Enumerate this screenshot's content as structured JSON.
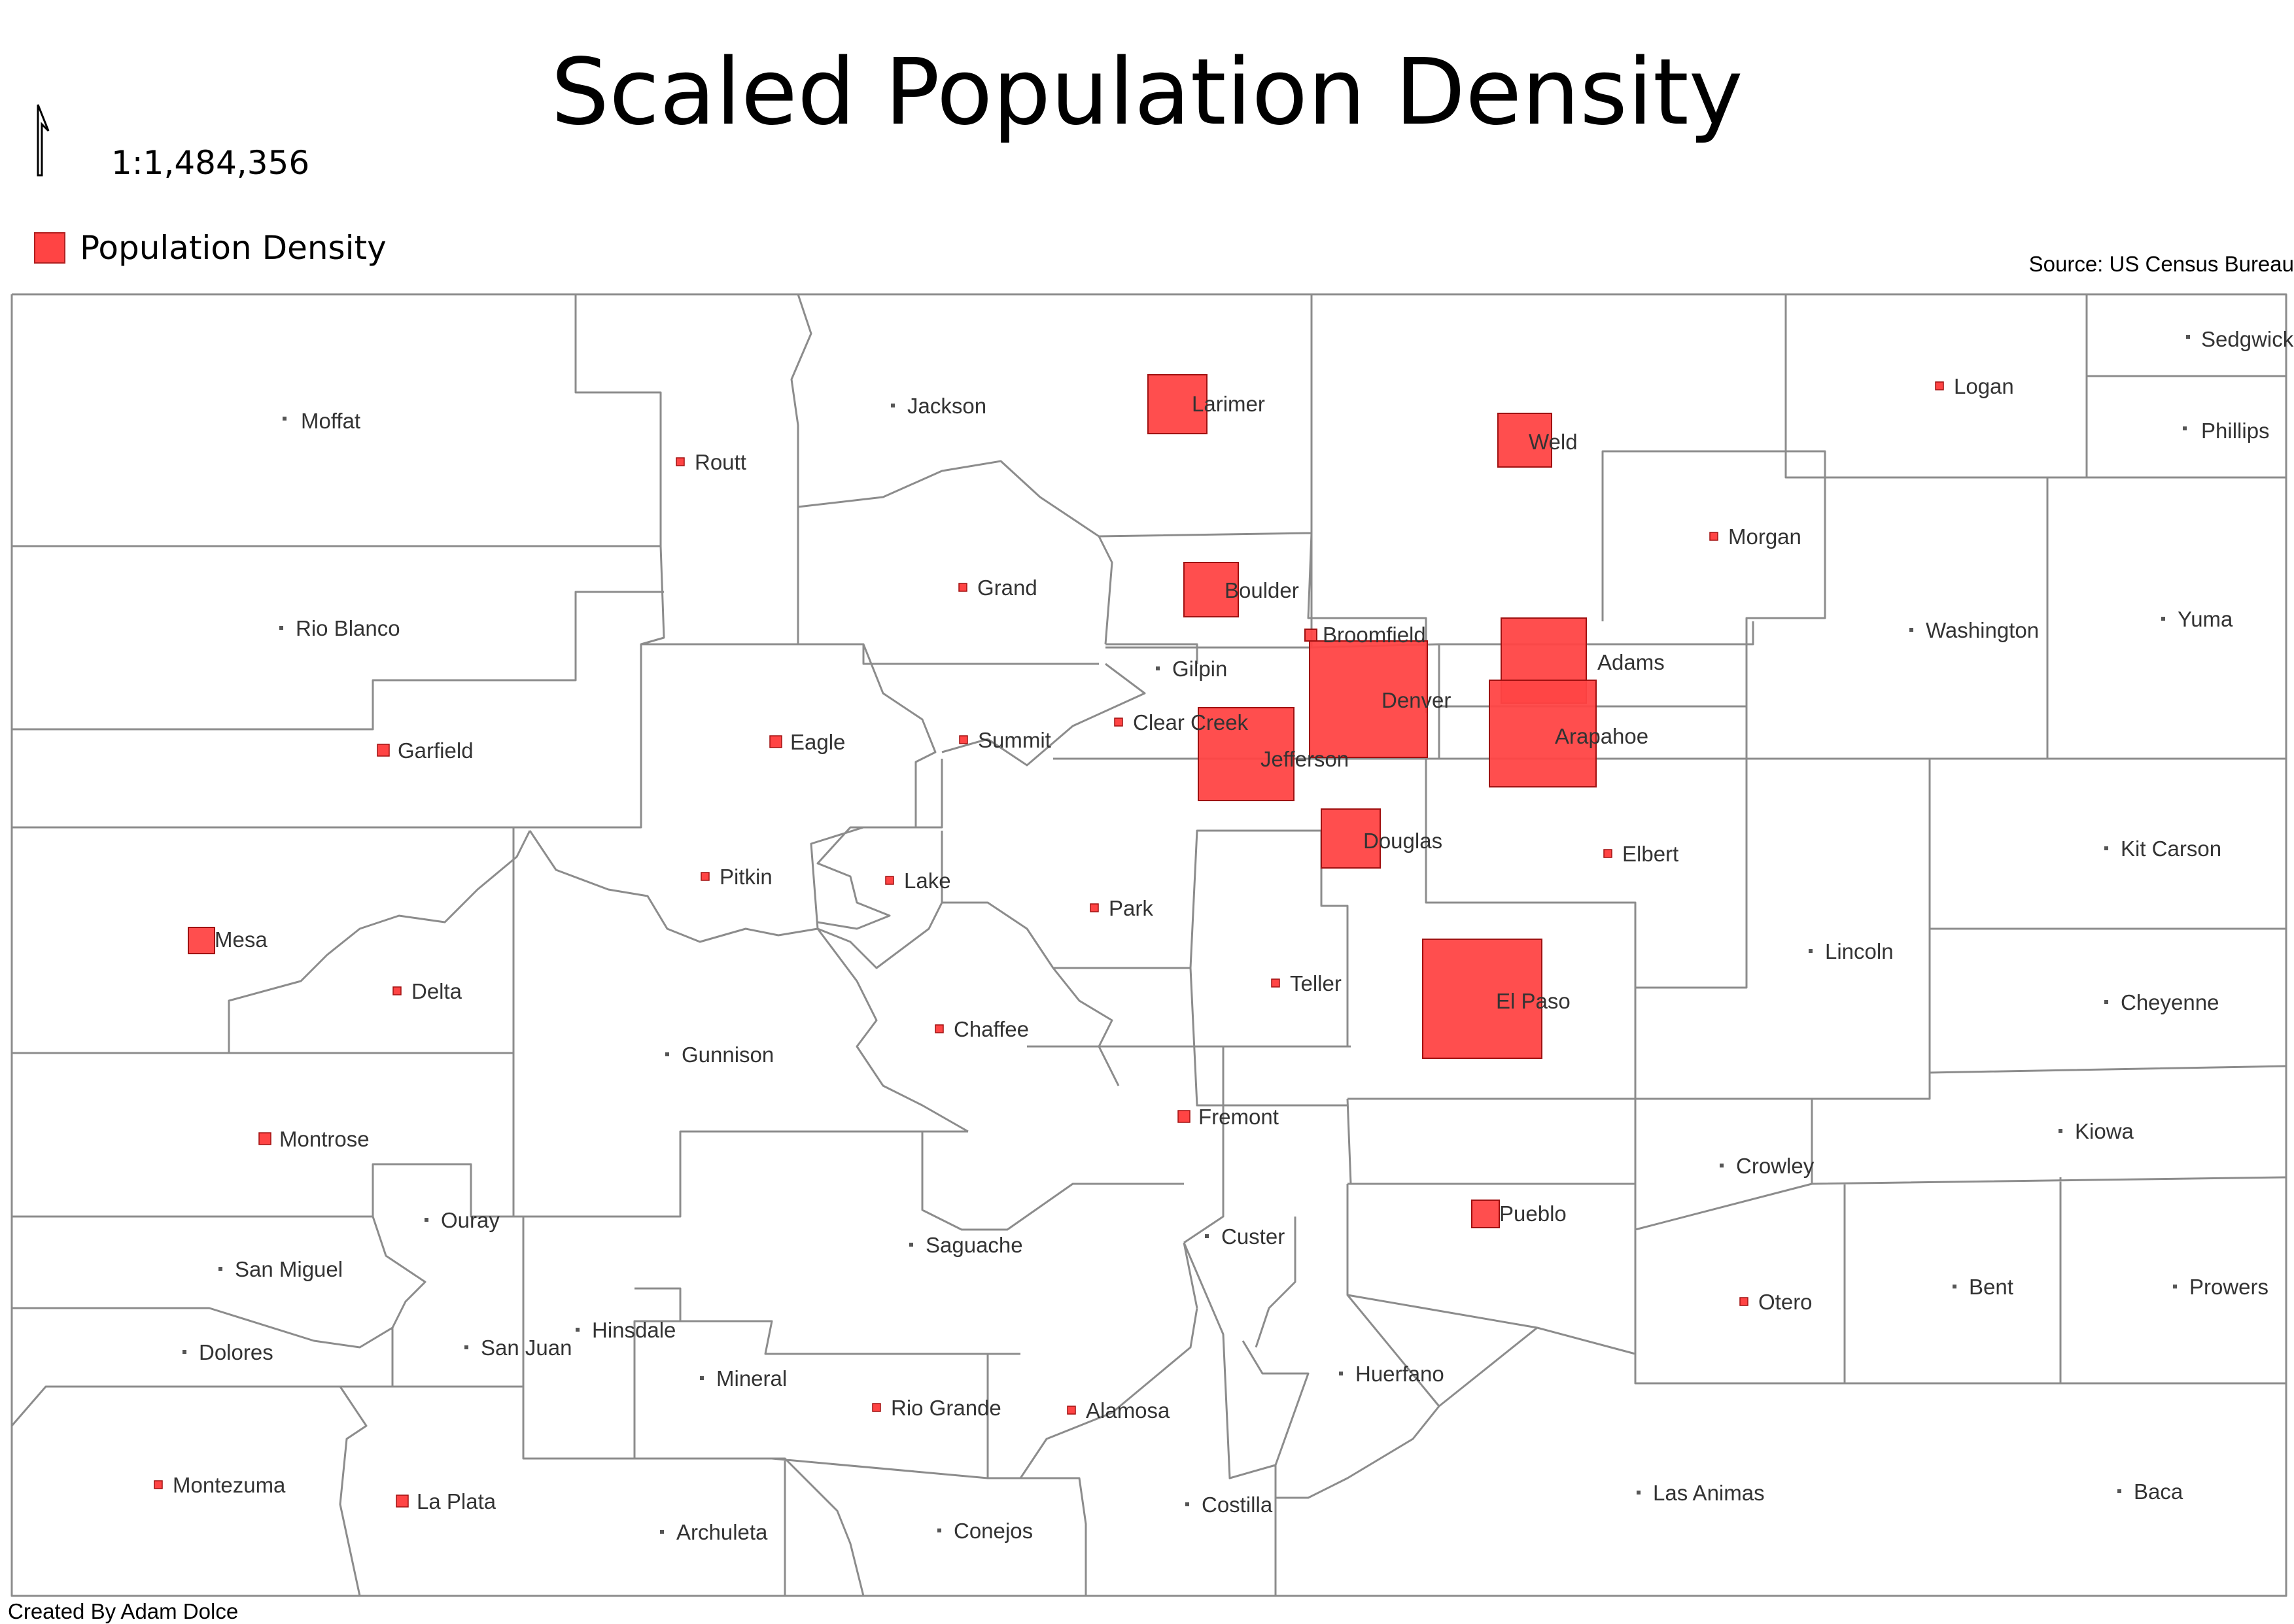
{
  "title": "Scaled Population Density",
  "scale_text": "1:1,484,356",
  "legend": {
    "label": "Population Density",
    "color": "#ff4444"
  },
  "source": "Source: US Census Bureau",
  "credit": "Created By Adam Dolce",
  "icons": {
    "north_arrow": "north-arrow-icon"
  },
  "counties": [
    {
      "name": "Moffat",
      "density_rank": 0
    },
    {
      "name": "Routt",
      "density_rank": 1
    },
    {
      "name": "Jackson",
      "density_rank": 0
    },
    {
      "name": "Larimer",
      "density_rank": 4
    },
    {
      "name": "Weld",
      "density_rank": 4
    },
    {
      "name": "Logan",
      "density_rank": 1
    },
    {
      "name": "Sedgwick",
      "density_rank": 0
    },
    {
      "name": "Phillips",
      "density_rank": 0
    },
    {
      "name": "Morgan",
      "density_rank": 1
    },
    {
      "name": "Rio Blanco",
      "density_rank": 0
    },
    {
      "name": "Grand",
      "density_rank": 1
    },
    {
      "name": "Boulder",
      "density_rank": 4
    },
    {
      "name": "Broomfield",
      "density_rank": 2
    },
    {
      "name": "Gilpin",
      "density_rank": 0
    },
    {
      "name": "Adams",
      "density_rank": 5
    },
    {
      "name": "Washington",
      "density_rank": 0
    },
    {
      "name": "Yuma",
      "density_rank": 0
    },
    {
      "name": "Denver",
      "density_rank": 6
    },
    {
      "name": "Garfield",
      "density_rank": 2
    },
    {
      "name": "Eagle",
      "density_rank": 2
    },
    {
      "name": "Summit",
      "density_rank": 1
    },
    {
      "name": "Clear Creek",
      "density_rank": 1
    },
    {
      "name": "Jefferson",
      "density_rank": 5
    },
    {
      "name": "Arapahoe",
      "density_rank": 6
    },
    {
      "name": "Pitkin",
      "density_rank": 1
    },
    {
      "name": "Lake",
      "density_rank": 1
    },
    {
      "name": "Park",
      "density_rank": 1
    },
    {
      "name": "Douglas",
      "density_rank": 4
    },
    {
      "name": "Elbert",
      "density_rank": 1
    },
    {
      "name": "Kit Carson",
      "density_rank": 0
    },
    {
      "name": "Mesa",
      "density_rank": 3
    },
    {
      "name": "Delta",
      "density_rank": 1
    },
    {
      "name": "Teller",
      "density_rank": 1
    },
    {
      "name": "Lincoln",
      "density_rank": 0
    },
    {
      "name": "Gunnison",
      "density_rank": 0
    },
    {
      "name": "Chaffee",
      "density_rank": 1
    },
    {
      "name": "El Paso",
      "density_rank": 7
    },
    {
      "name": "Cheyenne",
      "density_rank": 0
    },
    {
      "name": "Fremont",
      "density_rank": 2
    },
    {
      "name": "Kiowa",
      "density_rank": 0
    },
    {
      "name": "Montrose",
      "density_rank": 2
    },
    {
      "name": "Crowley",
      "density_rank": 0
    },
    {
      "name": "Ouray",
      "density_rank": 0
    },
    {
      "name": "Pueblo",
      "density_rank": 3
    },
    {
      "name": "San Miguel",
      "density_rank": 0
    },
    {
      "name": "Saguache",
      "density_rank": 0
    },
    {
      "name": "Custer",
      "density_rank": 0
    },
    {
      "name": "Otero",
      "density_rank": 1
    },
    {
      "name": "Bent",
      "density_rank": 0
    },
    {
      "name": "Prowers",
      "density_rank": 0
    },
    {
      "name": "Dolores",
      "density_rank": 0
    },
    {
      "name": "San Juan",
      "density_rank": 0
    },
    {
      "name": "Hinsdale",
      "density_rank": 0
    },
    {
      "name": "Mineral",
      "density_rank": 0
    },
    {
      "name": "Huerfano",
      "density_rank": 0
    },
    {
      "name": "Rio Grande",
      "density_rank": 1
    },
    {
      "name": "Alamosa",
      "density_rank": 1
    },
    {
      "name": "Montezuma",
      "density_rank": 1
    },
    {
      "name": "La Plata",
      "density_rank": 2
    },
    {
      "name": "Archuleta",
      "density_rank": 0
    },
    {
      "name": "Conejos",
      "density_rank": 0
    },
    {
      "name": "Costilla",
      "density_rank": 0
    },
    {
      "name": "Las Animas",
      "density_rank": 0
    },
    {
      "name": "Baca",
      "density_rank": 0
    }
  ]
}
